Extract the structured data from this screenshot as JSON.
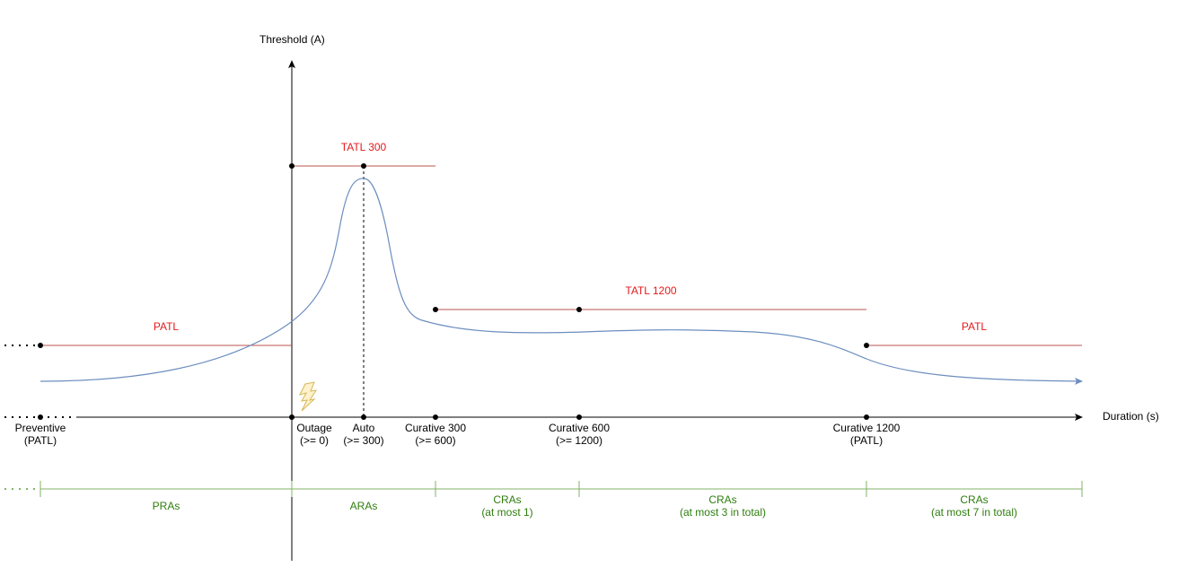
{
  "axes": {
    "y_title": "Threshold (A)",
    "x_title": "Duration (s)"
  },
  "limit_labels": {
    "patl_left": "PATL",
    "tatl_300": "TATL 300",
    "tatl_1200": "TATL 1200",
    "patl_right": "PATL"
  },
  "instants": [
    {
      "line1": "Preventive",
      "line2": "(PATL)"
    },
    {
      "line1": "Outage",
      "line2": "(>= 0)"
    },
    {
      "line1": "Auto",
      "line2": "(>= 300)"
    },
    {
      "line1": "Curative 300",
      "line2": "(>= 600)"
    },
    {
      "line1": "Curative 600",
      "line2": "(>= 1200)"
    },
    {
      "line1": "Curative 1200",
      "line2": "(PATL)"
    }
  ],
  "remedial_actions": [
    {
      "line1": "PRAs",
      "line2": ""
    },
    {
      "line1": "ARAs",
      "line2": ""
    },
    {
      "line1": "CRAs",
      "line2": "(at most 1)"
    },
    {
      "line1": "CRAs",
      "line2": "(at most 3 in total)"
    },
    {
      "line1": "CRAs",
      "line2": "(at most 7 in total)"
    }
  ],
  "icons": {
    "outage": "lightning-icon"
  },
  "colors": {
    "axis": "#000000",
    "limit_line": "#b85450",
    "limit_text": "#e31a1c",
    "flow_curve": "#6c8ebf",
    "ra_line": "#82b366",
    "ra_text": "#2e7d0e",
    "lightning_fill": "#fff2cc",
    "lightning_stroke": "#d6b656"
  }
}
